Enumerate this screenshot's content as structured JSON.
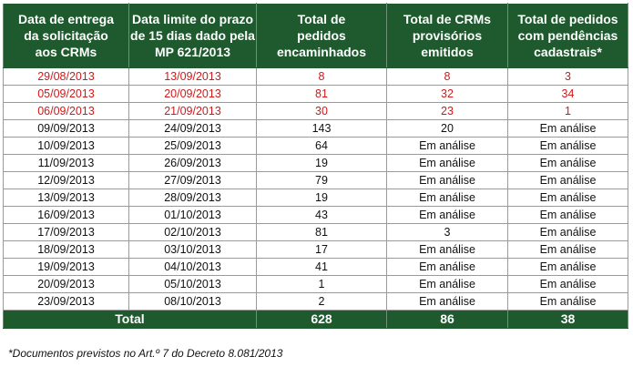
{
  "header": [
    [
      "Data de entrega",
      "da solicitação",
      "aos CRMs"
    ],
    [
      "Data limite do prazo",
      "de 15 dias dado pela",
      "MP 621/2013"
    ],
    [
      "Total de",
      "pedidos",
      "encaminhados"
    ],
    [
      "Total de CRMs",
      "provisórios",
      "emitidos"
    ],
    [
      "Total de pedidos",
      "com pendências",
      "cadastrais*"
    ]
  ],
  "rows": [
    {
      "highlight": true,
      "cells": [
        "29/08/2013",
        "13/09/2013",
        "8",
        "8",
        "3"
      ]
    },
    {
      "highlight": true,
      "cells": [
        "05/09/2013",
        "20/09/2013",
        "81",
        "32",
        "34"
      ]
    },
    {
      "highlight": true,
      "cells": [
        "06/09/2013",
        "21/09/2013",
        "30",
        "23",
        "1"
      ]
    },
    {
      "highlight": false,
      "cells": [
        "09/09/2013",
        "24/09/2013",
        "143",
        "20",
        "Em análise"
      ]
    },
    {
      "highlight": false,
      "cells": [
        "10/09/2013",
        "25/09/2013",
        "64",
        "Em análise",
        "Em análise"
      ]
    },
    {
      "highlight": false,
      "cells": [
        "11/09/2013",
        "26/09/2013",
        "19",
        "Em análise",
        "Em análise"
      ]
    },
    {
      "highlight": false,
      "cells": [
        "12/09/2013",
        "27/09/2013",
        "79",
        "Em análise",
        "Em análise"
      ]
    },
    {
      "highlight": false,
      "cells": [
        "13/09/2013",
        "28/09/2013",
        "19",
        "Em análise",
        "Em análise"
      ]
    },
    {
      "highlight": false,
      "cells": [
        "16/09/2013",
        "01/10/2013",
        "43",
        "Em análise",
        "Em análise"
      ]
    },
    {
      "highlight": false,
      "cells": [
        "17/09/2013",
        "02/10/2013",
        "81",
        "3",
        "Em análise"
      ]
    },
    {
      "highlight": false,
      "cells": [
        "18/09/2013",
        "03/10/2013",
        "17",
        "Em análise",
        "Em análise"
      ]
    },
    {
      "highlight": false,
      "cells": [
        "19/09/2013",
        "04/10/2013",
        "41",
        "Em análise",
        "Em análise"
      ]
    },
    {
      "highlight": false,
      "cells": [
        "20/09/2013",
        "05/10/2013",
        "1",
        "Em análise",
        "Em análise"
      ]
    },
    {
      "highlight": false,
      "cells": [
        "23/09/2013",
        "08/10/2013",
        "2",
        "Em análise",
        "Em análise"
      ]
    }
  ],
  "total": {
    "label": "Total",
    "values": [
      "628",
      "86",
      "38"
    ]
  },
  "footnote": "*Documentos previstos no Art.º 7 do Decreto 8.081/2013",
  "colors": {
    "header_bg": "#1e5a2e",
    "highlight_text": "#d01919"
  }
}
